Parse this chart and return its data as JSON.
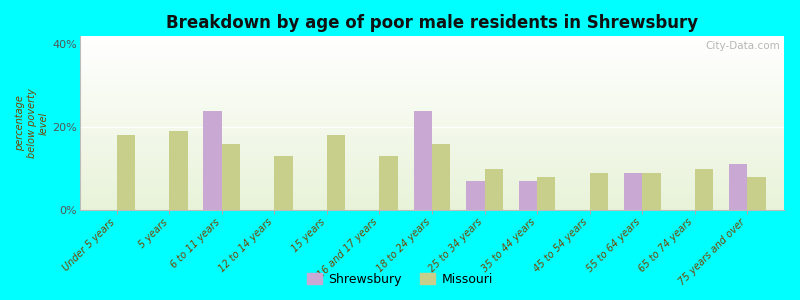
{
  "title": "Breakdown by age of poor male residents in Shrewsbury",
  "categories": [
    "Under 5 years",
    "5 years",
    "6 to 11 years",
    "12 to 14 years",
    "15 years",
    "16 and 17 years",
    "18 to 24 years",
    "25 to 34 years",
    "35 to 44 years",
    "45 to 54 years",
    "55 to 64 years",
    "65 to 74 years",
    "75 years and over"
  ],
  "shrewsbury": [
    null,
    null,
    24.0,
    null,
    null,
    null,
    24.0,
    7.0,
    7.0,
    null,
    9.0,
    null,
    11.0
  ],
  "missouri": [
    18.0,
    19.0,
    16.0,
    13.0,
    18.0,
    13.0,
    16.0,
    10.0,
    8.0,
    9.0,
    9.0,
    10.0,
    8.0
  ],
  "shrewsbury_color": "#c9a8d4",
  "missouri_color": "#c8cf8a",
  "ylabel": "percentage\nbelow poverty\nlevel",
  "ylim": [
    0,
    42
  ],
  "yticks": [
    0,
    20,
    40
  ],
  "ytick_labels": [
    "0%",
    "20%",
    "40%"
  ],
  "bar_width": 0.35,
  "bg_color": "#00ffff",
  "watermark": "City-Data.com"
}
